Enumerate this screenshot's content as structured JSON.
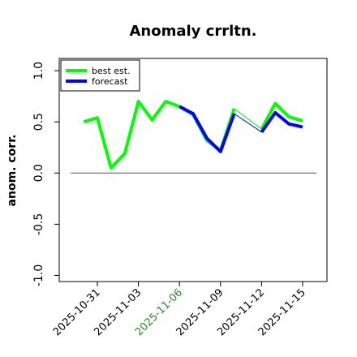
{
  "chart_data": {
    "type": "line",
    "title": "Anomaly crrltn.",
    "ylabel": "anom. corr.",
    "x": [
      "2025-10-30",
      "2025-10-31",
      "2025-11-01",
      "2025-11-02",
      "2025-11-03",
      "2025-11-04",
      "2025-11-05",
      "2025-11-06",
      "2025-11-07",
      "2025-11-08",
      "2025-11-09",
      "2025-11-10",
      "2025-11-11",
      "2025-11-12",
      "2025-11-13",
      "2025-11-14",
      "2025-11-15"
    ],
    "series": [
      {
        "name": "best est.",
        "color": "#00ff00",
        "values": [
          0.5,
          0.54,
          0.05,
          0.19,
          0.7,
          0.52,
          0.7,
          0.65,
          0.57,
          0.32,
          0.22,
          0.63,
          null,
          0.43,
          0.68,
          0.55,
          0.51
        ]
      },
      {
        "name": "forecast",
        "color": "#0000ff",
        "values": [
          null,
          null,
          null,
          null,
          null,
          null,
          null,
          0.65,
          0.58,
          0.34,
          0.21,
          0.58,
          null,
          0.4,
          0.59,
          0.48,
          0.45
        ]
      }
    ],
    "xlim": [
      "2025-10-28",
      "2025-11-17"
    ],
    "xticks": [
      "2025-10-31",
      "2025-11-03",
      "2025-11-06",
      "2025-11-09",
      "2025-11-12",
      "2025-11-15"
    ],
    "highlight_xtick": "2025-11-06",
    "highlight_color": "#228b22",
    "ylim": [
      -1.06,
      1.12
    ],
    "yticks": [
      {
        "value": -1,
        "label": "-1.0"
      },
      {
        "value": -0.5,
        "label": "-0.5"
      },
      {
        "value": 0,
        "label": "0.0"
      },
      {
        "value": 0.5,
        "label": "0.5"
      },
      {
        "value": 1,
        "label": "1.0"
      }
    ],
    "hline": 0,
    "legend": "upper left"
  }
}
